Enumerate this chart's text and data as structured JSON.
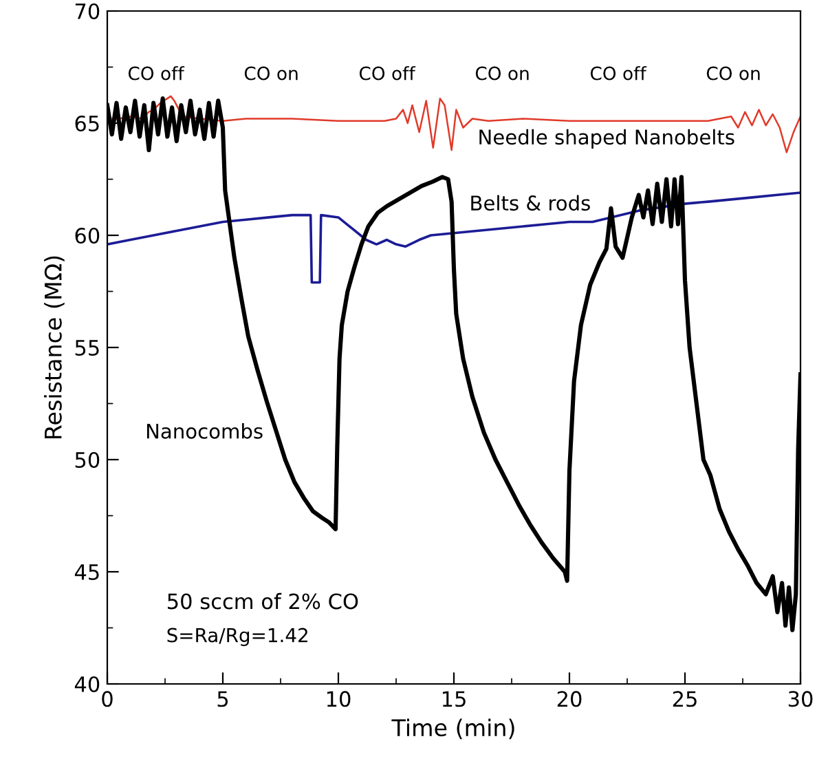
{
  "chart_data": {
    "type": "line",
    "xlabel": "Time (min)",
    "ylabel": "Resistance (MΩ)",
    "xlim": [
      0,
      30
    ],
    "ylim": [
      40,
      70
    ],
    "xticks": [
      0,
      5,
      10,
      15,
      20,
      25,
      30
    ],
    "yticks": [
      40,
      45,
      50,
      55,
      60,
      65,
      70
    ],
    "grid": false,
    "legend": false,
    "marker": "none",
    "line_style": "solid",
    "series": [
      {
        "name": "Needle shaped Nanobelts",
        "color": "#e03a2a",
        "x": [
          0,
          0.5,
          1,
          1.5,
          1.8,
          2,
          2.3,
          2.6,
          2.75,
          2.9,
          3.1,
          3.3,
          4,
          5,
          6,
          8,
          10,
          12,
          12.5,
          12.8,
          13.0,
          13.2,
          13.5,
          13.8,
          14.1,
          14.4,
          14.6,
          14.9,
          15.1,
          15.4,
          15.8,
          16.5,
          18,
          20,
          22,
          24,
          26,
          27,
          27.3,
          27.6,
          27.9,
          28.2,
          28.5,
          28.8,
          29.1,
          29.4,
          29.7,
          30
        ],
        "values": [
          65.2,
          65.2,
          65.3,
          65.2,
          65.5,
          65.6,
          65.9,
          66.1,
          66.2,
          66.0,
          65.6,
          65.3,
          65.2,
          65.1,
          65.2,
          65.2,
          65.1,
          65.1,
          65.2,
          65.6,
          65.0,
          65.8,
          64.6,
          66.0,
          63.9,
          66.1,
          65.8,
          63.8,
          65.6,
          64.8,
          65.2,
          65.1,
          65.2,
          65.1,
          65.1,
          65.1,
          65.1,
          65.3,
          64.8,
          65.5,
          64.9,
          65.6,
          64.9,
          65.4,
          64.8,
          63.7,
          64.6,
          65.3
        ]
      },
      {
        "name": "Belts & rods",
        "color": "#1c1c96",
        "x": [
          0,
          1,
          2,
          3,
          4,
          5,
          6,
          7,
          8,
          8.8,
          8.85,
          9.2,
          9.25,
          10,
          10.6,
          11.2,
          11.65,
          12.1,
          12.5,
          12.9,
          13.5,
          14,
          15,
          16,
          17,
          18,
          19,
          20,
          21,
          21.8,
          23,
          24.9,
          26,
          27,
          28,
          29,
          30
        ],
        "values": [
          59.6,
          59.8,
          60.0,
          60.2,
          60.4,
          60.6,
          60.7,
          60.8,
          60.9,
          60.9,
          57.9,
          57.9,
          60.9,
          60.8,
          60.3,
          59.8,
          59.6,
          59.8,
          59.6,
          59.5,
          59.8,
          60.0,
          60.1,
          60.2,
          60.3,
          60.4,
          60.5,
          60.6,
          60.6,
          60.8,
          61.1,
          61.4,
          61.5,
          61.6,
          61.7,
          61.8,
          61.9
        ]
      },
      {
        "name": "Nanocombs",
        "color": "#000000",
        "x": [
          0,
          0.2,
          0.4,
          0.6,
          0.8,
          1,
          1.2,
          1.4,
          1.6,
          1.8,
          2,
          2.2,
          2.4,
          2.6,
          2.8,
          3,
          3.2,
          3.4,
          3.6,
          3.8,
          4,
          4.2,
          4.4,
          4.6,
          4.8,
          5,
          5.1,
          5.3,
          5.5,
          5.8,
          6.1,
          6.5,
          6.9,
          7.3,
          7.7,
          8.1,
          8.5,
          8.9,
          9.3,
          9.6,
          9.88,
          9.95,
          10.05,
          10.15,
          10.4,
          10.7,
          11.0,
          11.3,
          11.7,
          12.1,
          12.6,
          13.1,
          13.6,
          14.1,
          14.5,
          14.75,
          14.9,
          15.0,
          15.1,
          15.4,
          15.8,
          16.3,
          16.8,
          17.3,
          17.8,
          18.3,
          18.8,
          19.3,
          19.8,
          19.9,
          20.0,
          20.2,
          20.5,
          20.9,
          21.3,
          21.6,
          21.8,
          22.0,
          22.3,
          22.7,
          23.0,
          23.2,
          23.4,
          23.6,
          23.8,
          24.0,
          24.2,
          24.4,
          24.55,
          24.7,
          24.85,
          25.0,
          25.2,
          25.5,
          25.8,
          26.1,
          26.5,
          26.9,
          27.3,
          27.7,
          28.1,
          28.5,
          28.8,
          29.0,
          29.2,
          29.35,
          29.5,
          29.65,
          29.8,
          29.9,
          30.0
        ],
        "values": [
          65.8,
          64.5,
          65.9,
          64.3,
          65.7,
          64.6,
          66.0,
          64.4,
          65.8,
          63.8,
          65.9,
          64.5,
          66.1,
          64.4,
          65.7,
          64.2,
          65.8,
          64.6,
          66.0,
          64.5,
          65.6,
          64.3,
          65.9,
          64.4,
          66.0,
          64.8,
          62.0,
          60.5,
          59.0,
          57.2,
          55.5,
          54.0,
          52.6,
          51.3,
          50.0,
          49.0,
          48.3,
          47.7,
          47.4,
          47.2,
          46.9,
          50.5,
          54.5,
          56.0,
          57.5,
          58.6,
          59.6,
          60.4,
          61.0,
          61.3,
          61.6,
          61.9,
          62.2,
          62.4,
          62.6,
          62.5,
          61.5,
          58.5,
          56.5,
          54.5,
          52.8,
          51.2,
          50.0,
          49.0,
          48.0,
          47.1,
          46.3,
          45.6,
          45.0,
          44.6,
          49.5,
          53.5,
          56.0,
          57.8,
          58.8,
          59.4,
          61.2,
          59.5,
          59.0,
          60.8,
          61.8,
          60.8,
          62.0,
          60.5,
          62.3,
          60.6,
          62.5,
          60.4,
          62.5,
          60.5,
          62.6,
          58.0,
          55.0,
          52.5,
          50.0,
          49.3,
          47.8,
          46.8,
          46.0,
          45.3,
          44.5,
          44.0,
          44.8,
          43.2,
          44.5,
          42.6,
          44.3,
          42.4,
          44.0,
          50.5,
          53.8
        ]
      }
    ],
    "annotations": [
      "CO off",
      "CO on",
      "CO off",
      "CO on",
      "CO off",
      "CO on",
      "50 sccm of 2% CO",
      "S=Ra/Rg=1.42"
    ]
  }
}
